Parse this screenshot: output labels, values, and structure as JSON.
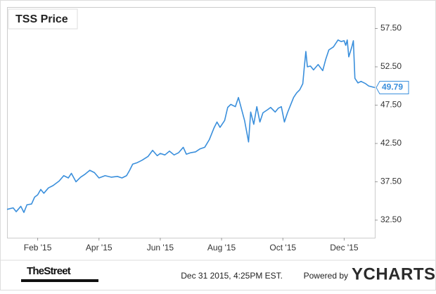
{
  "chart_data": {
    "type": "line",
    "title": "TSS Price",
    "x": [
      0,
      0.2,
      0.3,
      0.45,
      0.55,
      0.65,
      0.8,
      0.9,
      1.0,
      1.1,
      1.2,
      1.35,
      1.5,
      1.7,
      1.85,
      2.0,
      2.1,
      2.25,
      2.4,
      2.55,
      2.7,
      2.85,
      3.0,
      3.2,
      3.4,
      3.6,
      3.75,
      3.9,
      4.0,
      4.1,
      4.25,
      4.4,
      4.6,
      4.75,
      4.9,
      5.0,
      5.15,
      5.3,
      5.45,
      5.6,
      5.75,
      5.85,
      6.0,
      6.15,
      6.3,
      6.45,
      6.6,
      6.75,
      6.85,
      6.95,
      7.1,
      7.2,
      7.3,
      7.45,
      7.55,
      7.65,
      7.75,
      7.82,
      7.88,
      7.95,
      8.05,
      8.15,
      8.25,
      8.35,
      8.5,
      8.6,
      8.75,
      8.85,
      8.95,
      9.05,
      9.15,
      9.25,
      9.35,
      9.45,
      9.55,
      9.65,
      9.7,
      9.75,
      9.8,
      9.9,
      10.0,
      10.15,
      10.3,
      10.4,
      10.5,
      10.65,
      10.8,
      10.9,
      11.0,
      11.05,
      11.1,
      11.15,
      11.25,
      11.3,
      11.35,
      11.45,
      11.55,
      11.7,
      11.8,
      12.0
    ],
    "series": [
      {
        "name": "TSS",
        "color": "#3a8fdc",
        "values": [
          33.9,
          34.1,
          33.6,
          34.3,
          33.5,
          34.5,
          34.6,
          35.5,
          35.8,
          36.5,
          36.0,
          36.7,
          37.0,
          37.6,
          38.3,
          38.0,
          38.6,
          37.5,
          38.1,
          38.5,
          39.0,
          38.7,
          38.0,
          38.3,
          38.1,
          38.2,
          38.0,
          38.3,
          39.0,
          39.8,
          40.0,
          40.3,
          40.8,
          41.6,
          40.9,
          41.2,
          41.0,
          41.5,
          41.0,
          41.3,
          42.0,
          41.1,
          41.3,
          41.4,
          41.8,
          42.0,
          43.0,
          44.5,
          45.3,
          44.6,
          45.5,
          47.2,
          47.6,
          47.3,
          48.5,
          47.0,
          45.5,
          44.0,
          42.7,
          46.6,
          45.0,
          47.3,
          45.3,
          46.5,
          46.9,
          47.2,
          46.6,
          47.1,
          47.3,
          45.3,
          46.5,
          47.5,
          48.5,
          49.1,
          49.5,
          50.3,
          52.5,
          54.5,
          52.5,
          52.6,
          52.1,
          52.8,
          52.0,
          53.5,
          54.7,
          55.1,
          56.0,
          55.8,
          55.9,
          55.3,
          56.0,
          53.8,
          55.1,
          55.9,
          51.0,
          50.4,
          50.6,
          50.3,
          50.0,
          49.79
        ]
      }
    ],
    "xlim": [
      0,
      12
    ],
    "xticks": [
      {
        "value": 1,
        "label": "Feb '15"
      },
      {
        "value": 3,
        "label": "Apr '15"
      },
      {
        "value": 5,
        "label": "Jun '15"
      },
      {
        "value": 7,
        "label": "Aug '15"
      },
      {
        "value": 9,
        "label": "Oct '15"
      },
      {
        "value": 11,
        "label": "Dec '15"
      }
    ],
    "ylim": [
      30.2,
      60.3
    ],
    "yticks": [
      {
        "value": 32.5,
        "label": "32.50"
      },
      {
        "value": 37.5,
        "label": "37.50"
      },
      {
        "value": 42.5,
        "label": "42.50"
      },
      {
        "value": 47.5,
        "label": "47.50"
      },
      {
        "value": 52.5,
        "label": "52.50"
      },
      {
        "value": 57.5,
        "label": "57.50"
      }
    ],
    "grid": false
  },
  "footer": {
    "source": "TheStreet",
    "timestamp": "Dec 31 2015, 4:25PM EST.",
    "powered_by": "Powered by",
    "brand": "YCHARTS"
  }
}
